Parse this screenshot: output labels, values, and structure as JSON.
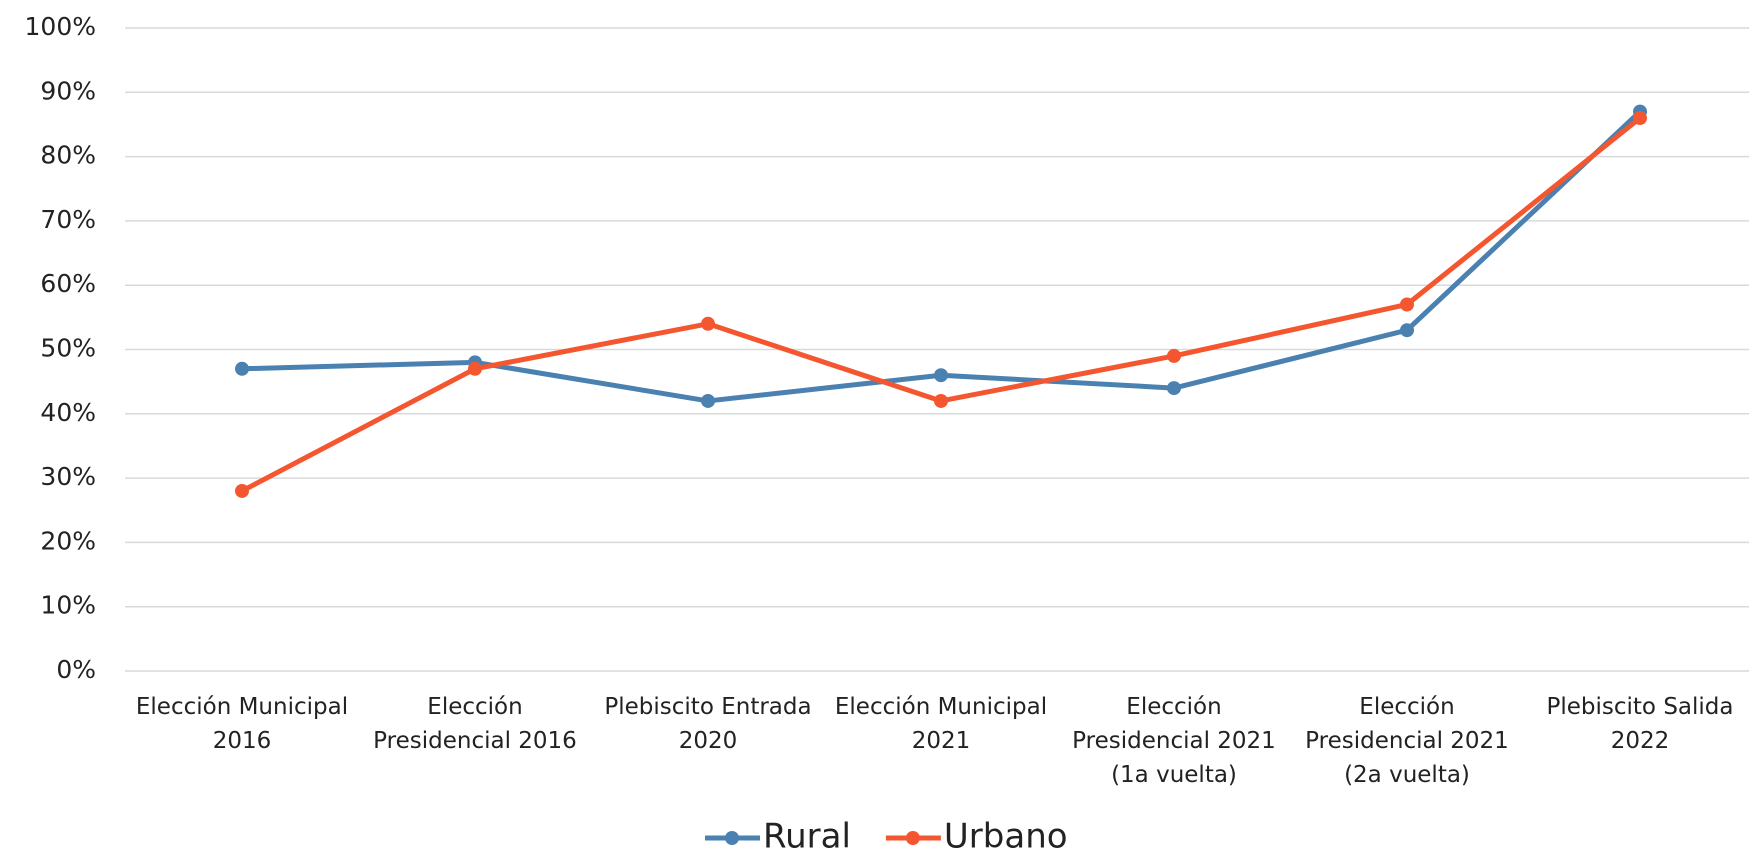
{
  "chart_data": {
    "type": "line",
    "categories": [
      "Elección Municipal 2016",
      "Elección Presidencial 2016",
      "Plebiscito Entrada 2020",
      "Elección Municipal 2021",
      "Elección Presidencial 2021 (1a vuelta)",
      "Elección Presidencial 2021 (2a vuelta)",
      "Plebiscito Salida 2022"
    ],
    "series": [
      {
        "name": "Rural",
        "color": "#4a81b0",
        "values": [
          47,
          48,
          42,
          46,
          44,
          53,
          87
        ]
      },
      {
        "name": "Urbano",
        "color": "#f4572f",
        "values": [
          28,
          47,
          54,
          42,
          49,
          57,
          86
        ]
      }
    ],
    "ylim": [
      0,
      100
    ],
    "yticks": [
      {
        "value": 0,
        "label": "0%"
      },
      {
        "value": 10,
        "label": "10%"
      },
      {
        "value": 20,
        "label": "20%"
      },
      {
        "value": 30,
        "label": "30%"
      },
      {
        "value": 40,
        "label": "40%"
      },
      {
        "value": 50,
        "label": "50%"
      },
      {
        "value": 60,
        "label": "60%"
      },
      {
        "value": 70,
        "label": "70%"
      },
      {
        "value": 80,
        "label": "80%"
      },
      {
        "value": 90,
        "label": "90%"
      },
      {
        "value": 100,
        "label": "100%"
      }
    ],
    "grid": true,
    "legend": "bottom"
  }
}
